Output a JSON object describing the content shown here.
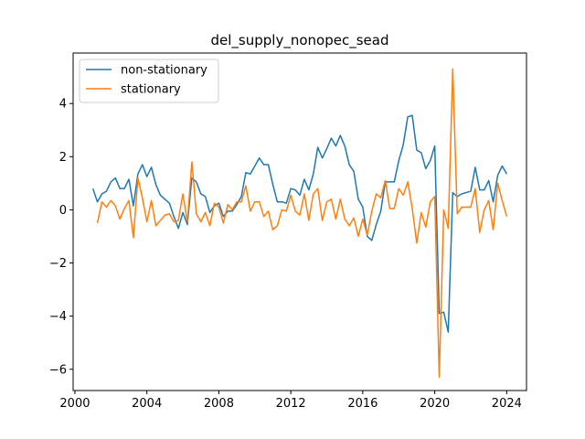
{
  "chart_data": {
    "type": "line",
    "title": "del_supply_nonopec_sead",
    "xlabel": "",
    "ylabel": "",
    "xlim": [
      1999.9,
      2025.1
    ],
    "ylim": [
      -6.8,
      5.9
    ],
    "x_ticks": [
      2000,
      2004,
      2008,
      2012,
      2016,
      2020,
      2024
    ],
    "y_ticks": [
      -6,
      -4,
      -2,
      0,
      2,
      4
    ],
    "x_tick_labels": [
      "2000",
      "2004",
      "2008",
      "2012",
      "2016",
      "2020",
      "2024"
    ],
    "y_tick_labels": [
      "−6",
      "−4",
      "−2",
      "0",
      "2",
      "4"
    ],
    "legend": {
      "position": "upper-left"
    },
    "series": [
      {
        "name": "non-stationary",
        "color": "#1f77b4",
        "x": [
          2001.0,
          2001.25,
          2001.5,
          2001.75,
          2002.0,
          2002.25,
          2002.5,
          2002.75,
          2003.0,
          2003.25,
          2003.5,
          2003.75,
          2004.0,
          2004.25,
          2004.5,
          2004.75,
          2005.0,
          2005.25,
          2005.5,
          2005.75,
          2006.0,
          2006.25,
          2006.5,
          2006.75,
          2007.0,
          2007.25,
          2007.5,
          2007.75,
          2008.0,
          2008.25,
          2008.5,
          2008.75,
          2009.0,
          2009.25,
          2009.5,
          2009.75,
          2010.0,
          2010.25,
          2010.5,
          2010.75,
          2011.0,
          2011.25,
          2011.5,
          2011.75,
          2012.0,
          2012.25,
          2012.5,
          2012.75,
          2013.0,
          2013.25,
          2013.5,
          2013.75,
          2014.0,
          2014.25,
          2014.5,
          2014.75,
          2015.0,
          2015.25,
          2015.5,
          2015.75,
          2016.0,
          2016.25,
          2016.5,
          2016.75,
          2017.0,
          2017.25,
          2017.5,
          2017.75,
          2018.0,
          2018.25,
          2018.5,
          2018.75,
          2019.0,
          2019.25,
          2019.5,
          2019.75,
          2020.0,
          2020.25,
          2020.5,
          2020.75,
          2021.0,
          2021.25,
          2021.5,
          2021.75,
          2022.0,
          2022.25,
          2022.5,
          2022.75,
          2023.0,
          2023.25,
          2023.5,
          2023.75,
          2024.0
        ],
        "values": [
          0.8,
          0.3,
          0.6,
          0.7,
          1.05,
          1.2,
          0.8,
          0.8,
          1.15,
          0.15,
          1.35,
          1.7,
          1.25,
          1.6,
          0.95,
          0.55,
          0.4,
          0.25,
          -0.25,
          -0.7,
          -0.1,
          -0.55,
          1.2,
          1.05,
          0.6,
          0.5,
          -0.1,
          0.15,
          0.25,
          -0.25,
          -0.05,
          -0.05,
          0.2,
          0.5,
          1.4,
          1.35,
          1.65,
          1.95,
          1.7,
          1.7,
          0.95,
          0.3,
          0.3,
          0.25,
          0.8,
          0.75,
          0.55,
          1.15,
          0.75,
          1.35,
          2.35,
          1.95,
          2.3,
          2.7,
          2.4,
          2.8,
          2.4,
          1.7,
          1.45,
          0.4,
          0.1,
          -1.0,
          -1.15,
          -0.55,
          -0.05,
          1.05,
          1.05,
          1.05,
          1.85,
          2.45,
          3.5,
          3.55,
          2.25,
          2.15,
          1.55,
          1.85,
          2.4,
          -3.9,
          -3.85,
          -4.6,
          0.65,
          0.5,
          0.6,
          0.65,
          0.7,
          1.6,
          0.75,
          0.75,
          1.1,
          0.3,
          1.3,
          1.65,
          1.35
        ]
      },
      {
        "name": "stationary",
        "color": "#ff7f0e",
        "x": [
          2001.25,
          2001.5,
          2001.75,
          2002.0,
          2002.25,
          2002.5,
          2002.75,
          2003.0,
          2003.25,
          2003.5,
          2003.75,
          2004.0,
          2004.25,
          2004.5,
          2004.75,
          2005.0,
          2005.25,
          2005.5,
          2005.75,
          2006.0,
          2006.25,
          2006.5,
          2006.75,
          2007.0,
          2007.25,
          2007.5,
          2007.75,
          2008.0,
          2008.25,
          2008.5,
          2008.75,
          2009.0,
          2009.25,
          2009.5,
          2009.75,
          2010.0,
          2010.25,
          2010.5,
          2010.75,
          2011.0,
          2011.25,
          2011.5,
          2011.75,
          2012.0,
          2012.25,
          2012.5,
          2012.75,
          2013.0,
          2013.25,
          2013.5,
          2013.75,
          2014.0,
          2014.25,
          2014.5,
          2014.75,
          2015.0,
          2015.25,
          2015.5,
          2015.75,
          2016.0,
          2016.25,
          2016.5,
          2016.75,
          2017.0,
          2017.25,
          2017.5,
          2017.75,
          2018.0,
          2018.25,
          2018.5,
          2018.75,
          2019.0,
          2019.25,
          2019.5,
          2019.75,
          2020.0,
          2020.25,
          2020.5,
          2020.75,
          2021.0,
          2021.25,
          2021.5,
          2021.75,
          2022.0,
          2022.25,
          2022.5,
          2022.75,
          2023.0,
          2023.25,
          2023.5,
          2023.75,
          2024.0
        ],
        "values": [
          -0.5,
          0.3,
          0.1,
          0.35,
          0.15,
          -0.35,
          0.05,
          0.35,
          -1.05,
          1.2,
          0.45,
          -0.45,
          0.35,
          -0.6,
          -0.4,
          -0.2,
          -0.15,
          -0.45,
          -0.4,
          0.6,
          -0.45,
          1.8,
          -0.15,
          -0.45,
          -0.1,
          -0.6,
          0.25,
          0.1,
          -0.5,
          0.2,
          0.0,
          0.3,
          0.3,
          0.9,
          -0.05,
          0.3,
          0.3,
          -0.25,
          -0.05,
          -0.75,
          -0.6,
          0.0,
          -0.05,
          0.55,
          -0.05,
          -0.2,
          0.6,
          -0.4,
          0.6,
          0.8,
          -0.4,
          0.3,
          0.4,
          -0.35,
          0.4,
          -0.35,
          -0.6,
          -0.3,
          -1.0,
          -0.35,
          -0.95,
          -0.05,
          0.6,
          0.45,
          1.1,
          0.05,
          0.05,
          0.8,
          0.55,
          1.05,
          0.05,
          -1.25,
          -0.1,
          -0.65,
          0.3,
          0.5,
          -6.3,
          0.0,
          -0.7,
          5.3,
          -0.15,
          0.1,
          0.1,
          0.1,
          0.8,
          -0.85,
          0.0,
          0.35,
          -0.75,
          1.0,
          0.35,
          -0.25
        ]
      }
    ]
  }
}
